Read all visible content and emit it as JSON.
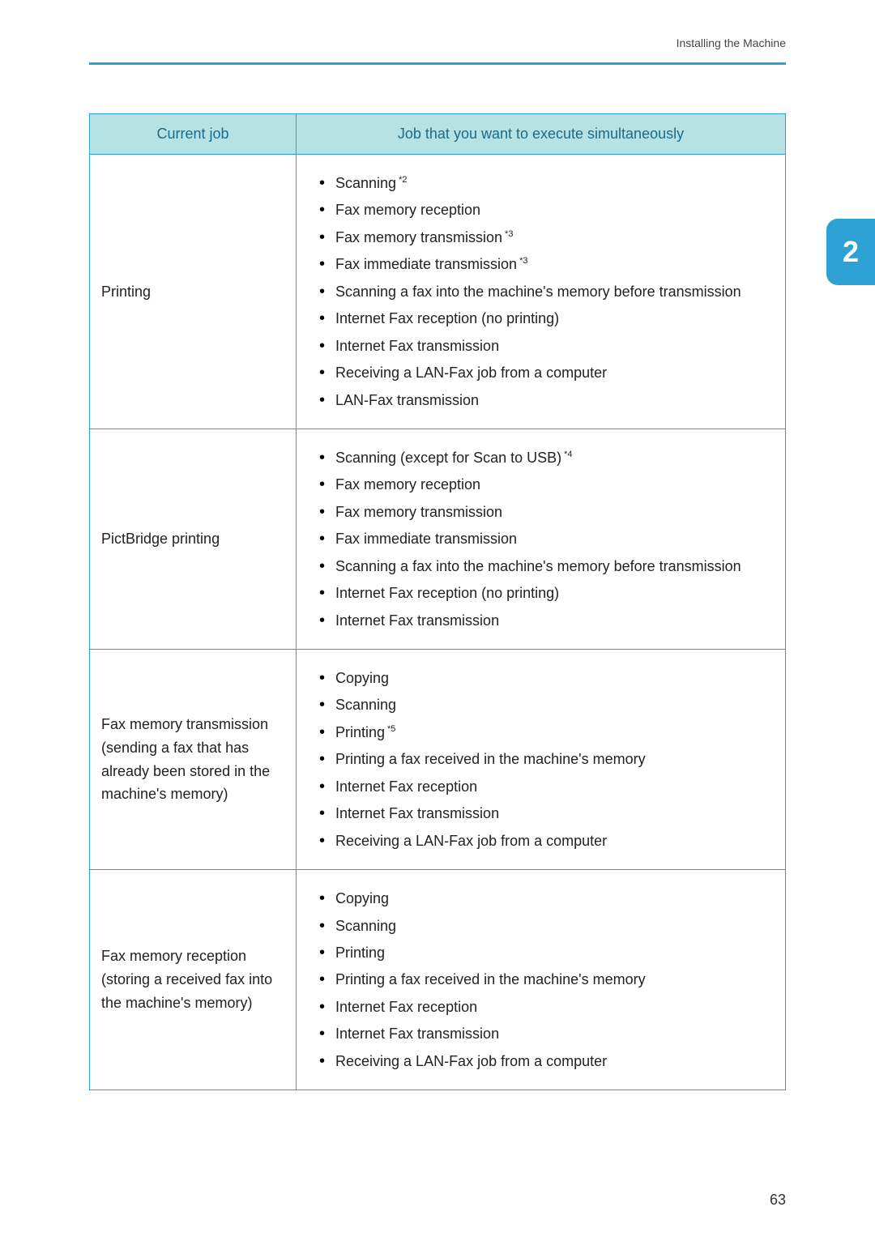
{
  "header_text": "Installing the Machine",
  "chapter_number": "2",
  "page_number": "63",
  "table": {
    "headers": {
      "col1": "Current job",
      "col2": "Job that you want to execute simultaneously"
    },
    "rows": [
      {
        "current": "Printing",
        "jobs": [
          {
            "text": "Scanning",
            "sup": "*2"
          },
          {
            "text": "Fax memory reception",
            "sup": ""
          },
          {
            "text": "Fax memory transmission",
            "sup": "*3"
          },
          {
            "text": "Fax immediate transmission",
            "sup": "*3"
          },
          {
            "text": "Scanning a fax into the machine's memory before transmission",
            "sup": ""
          },
          {
            "text": "Internet Fax reception (no printing)",
            "sup": ""
          },
          {
            "text": "Internet Fax transmission",
            "sup": ""
          },
          {
            "text": "Receiving a LAN-Fax job from a computer",
            "sup": ""
          },
          {
            "text": "LAN-Fax transmission",
            "sup": ""
          }
        ]
      },
      {
        "current": "PictBridge printing",
        "jobs": [
          {
            "text": "Scanning (except for Scan to USB)",
            "sup": "*4"
          },
          {
            "text": "Fax memory reception",
            "sup": ""
          },
          {
            "text": "Fax memory transmission",
            "sup": ""
          },
          {
            "text": "Fax immediate transmission",
            "sup": ""
          },
          {
            "text": "Scanning a fax into the machine's memory before transmission",
            "sup": ""
          },
          {
            "text": "Internet Fax reception (no printing)",
            "sup": ""
          },
          {
            "text": "Internet Fax transmission",
            "sup": ""
          }
        ]
      },
      {
        "current": "Fax memory transmission (sending a fax that has already been stored in the machine's memory)",
        "jobs": [
          {
            "text": "Copying",
            "sup": ""
          },
          {
            "text": "Scanning",
            "sup": ""
          },
          {
            "text": "Printing",
            "sup": "*5"
          },
          {
            "text": "Printing a fax received in the machine's memory",
            "sup": ""
          },
          {
            "text": "Internet Fax reception",
            "sup": ""
          },
          {
            "text": "Internet Fax transmission",
            "sup": ""
          },
          {
            "text": "Receiving a LAN-Fax job from a computer",
            "sup": ""
          }
        ]
      },
      {
        "current": "Fax memory reception (storing a received fax into the machine's memory)",
        "jobs": [
          {
            "text": "Copying",
            "sup": ""
          },
          {
            "text": "Scanning",
            "sup": ""
          },
          {
            "text": "Printing",
            "sup": ""
          },
          {
            "text": "Printing a fax received in the machine's memory",
            "sup": ""
          },
          {
            "text": "Internet Fax reception",
            "sup": ""
          },
          {
            "text": "Internet Fax transmission",
            "sup": ""
          },
          {
            "text": "Receiving a LAN-Fax job from a computer",
            "sup": ""
          }
        ]
      }
    ]
  }
}
